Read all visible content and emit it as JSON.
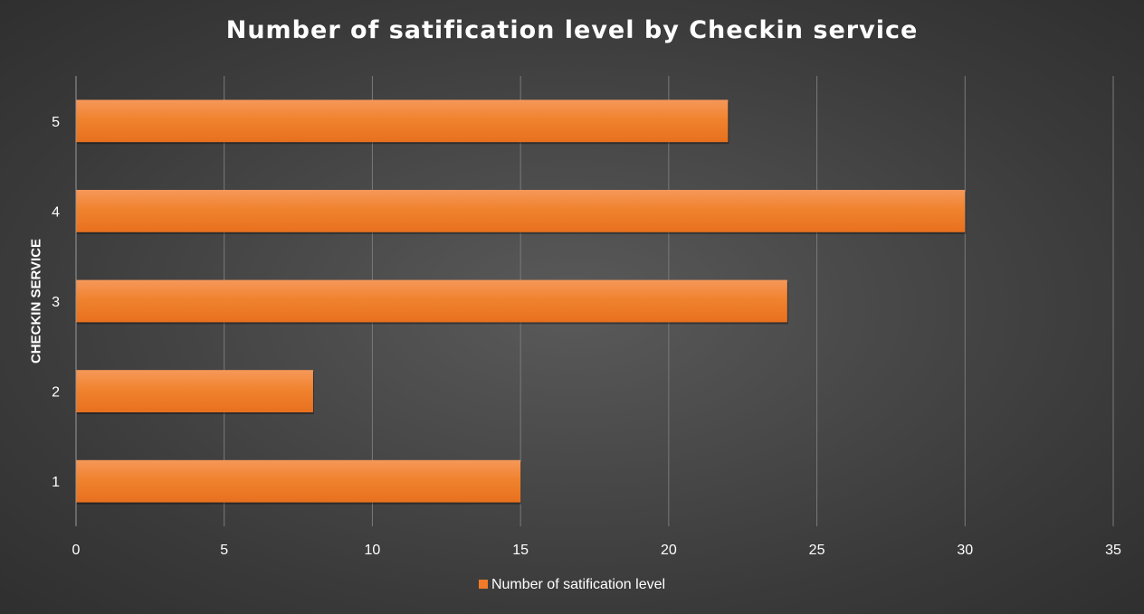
{
  "chart_data": {
    "type": "bar",
    "orientation": "horizontal",
    "title": "Number of satification  level by Checkin service",
    "ylabel": "CHECKIN SERVICE",
    "xlabel": "",
    "categories": [
      "1",
      "2",
      "3",
      "4",
      "5"
    ],
    "series": [
      {
        "name": "Number of satification level",
        "values": [
          15,
          8,
          24,
          30,
          22
        ],
        "color": "#ef7a2a"
      }
    ],
    "xlim": [
      0,
      35
    ],
    "xticks": [
      "0",
      "5",
      "10",
      "15",
      "20",
      "25",
      "30",
      "35"
    ],
    "grid": "vertical",
    "legend_position": "bottom",
    "colors": {
      "bar": "#ef7a2a",
      "bar_highlight": "#f6985a",
      "gridline": "#7a7a7a",
      "text": "#ffffff"
    }
  }
}
